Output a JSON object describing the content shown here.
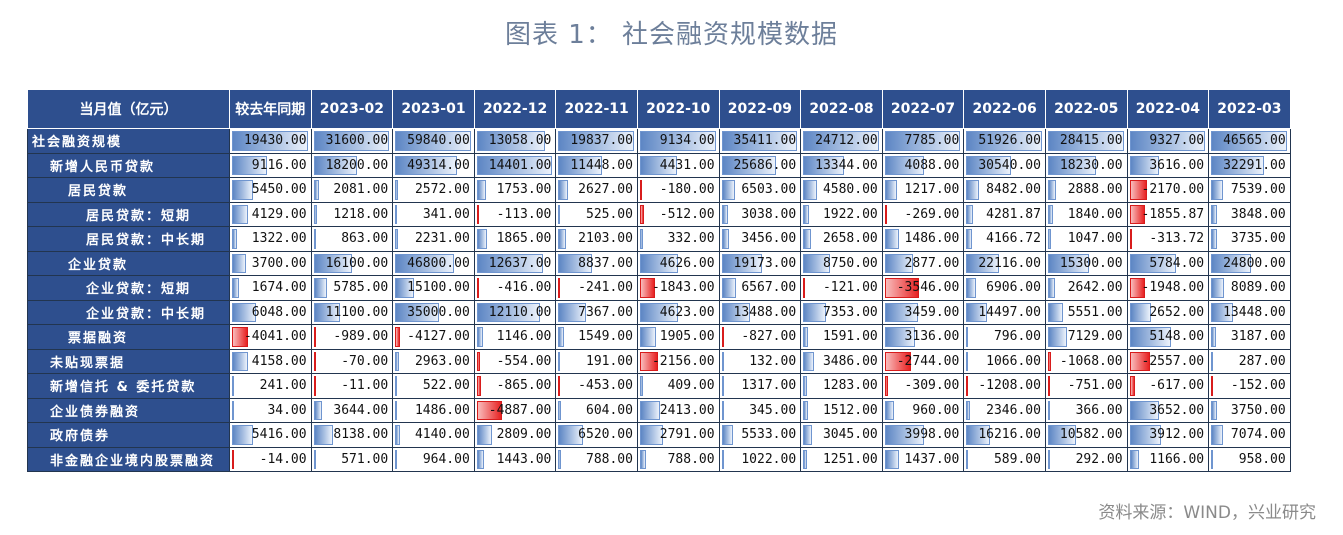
{
  "title": "图表 1：  社会融资规模数据",
  "source": "资料来源：WIND，兴业研究",
  "chart_data": {
    "type": "table",
    "header_label": "当月值（亿元）",
    "columns": [
      "较去年同期",
      "2023-02",
      "2023-01",
      "2022-12",
      "2022-11",
      "2022-10",
      "2022-09",
      "2022-08",
      "2022-07",
      "2022-06",
      "2022-05",
      "2022-04",
      "2022-03"
    ],
    "rows": [
      {
        "label": "社会融资规模",
        "indent": 0,
        "values": [
          "19430.00",
          "31600.00",
          "59840.00",
          "13058.00",
          "19837.00",
          "9134.00",
          "35411.00",
          "24712.00",
          "7785.00",
          "51926.00",
          "28415.00",
          "9327.00",
          "46565.00"
        ]
      },
      {
        "label": "新增人民币贷款",
        "indent": 1,
        "values": [
          "9116.00",
          "18200.00",
          "49314.00",
          "14401.00",
          "11448.00",
          "4431.00",
          "25686.00",
          "13344.00",
          "4088.00",
          "30540.00",
          "18230.00",
          "3616.00",
          "32291.00"
        ]
      },
      {
        "label": "居民贷款",
        "indent": 2,
        "values": [
          "5450.00",
          "2081.00",
          "2572.00",
          "1753.00",
          "2627.00",
          "-180.00",
          "6503.00",
          "4580.00",
          "1217.00",
          "8482.00",
          "2888.00",
          "-2170.00",
          "7539.00"
        ]
      },
      {
        "label": "居民贷款：短期",
        "indent": 3,
        "values": [
          "4129.00",
          "1218.00",
          "341.00",
          "-113.00",
          "525.00",
          "-512.00",
          "3038.00",
          "1922.00",
          "-269.00",
          "4281.87",
          "1840.00",
          "-1855.87",
          "3848.00"
        ]
      },
      {
        "label": "居民贷款：中长期",
        "indent": 3,
        "values": [
          "1322.00",
          "863.00",
          "2231.00",
          "1865.00",
          "2103.00",
          "332.00",
          "3456.00",
          "2658.00",
          "1486.00",
          "4166.72",
          "1047.00",
          "-313.72",
          "3735.00"
        ]
      },
      {
        "label": "企业贷款",
        "indent": 2,
        "values": [
          "3700.00",
          "16100.00",
          "46800.00",
          "12637.00",
          "8837.00",
          "4626.00",
          "19173.00",
          "8750.00",
          "2877.00",
          "22116.00",
          "15300.00",
          "5784.00",
          "24800.00"
        ]
      },
      {
        "label": "企业贷款：短期",
        "indent": 3,
        "values": [
          "1674.00",
          "5785.00",
          "15100.00",
          "-416.00",
          "-241.00",
          "-1843.00",
          "6567.00",
          "-121.00",
          "-3546.00",
          "6906.00",
          "2642.00",
          "-1948.00",
          "8089.00"
        ]
      },
      {
        "label": "企业贷款：中长期",
        "indent": 3,
        "values": [
          "6048.00",
          "11100.00",
          "35000.00",
          "12110.00",
          "7367.00",
          "4623.00",
          "13488.00",
          "7353.00",
          "3459.00",
          "14497.00",
          "5551.00",
          "2652.00",
          "13448.00"
        ]
      },
      {
        "label": "票据融资",
        "indent": 2,
        "values": [
          "-4041.00",
          "-989.00",
          "-4127.00",
          "1146.00",
          "1549.00",
          "1905.00",
          "-827.00",
          "1591.00",
          "3136.00",
          "796.00",
          "7129.00",
          "5148.00",
          "3187.00"
        ]
      },
      {
        "label": "未贴现票据",
        "indent": 1,
        "values": [
          "4158.00",
          "-70.00",
          "2963.00",
          "-554.00",
          "191.00",
          "-2156.00",
          "132.00",
          "3486.00",
          "-2744.00",
          "1066.00",
          "-1068.00",
          "-2557.00",
          "287.00"
        ]
      },
      {
        "label": "新增信托 & 委托贷款",
        "indent": 1,
        "values": [
          "241.00",
          "-11.00",
          "522.00",
          "-865.00",
          "-453.00",
          "409.00",
          "1317.00",
          "1283.00",
          "-309.00",
          "-1208.00",
          "-751.00",
          "-617.00",
          "-152.00"
        ]
      },
      {
        "label": "企业债券融资",
        "indent": 1,
        "values": [
          "34.00",
          "3644.00",
          "1486.00",
          "-4887.00",
          "604.00",
          "2413.00",
          "345.00",
          "1512.00",
          "960.00",
          "2346.00",
          "366.00",
          "3652.00",
          "3750.00"
        ]
      },
      {
        "label": "政府债券",
        "indent": 1,
        "values": [
          "5416.00",
          "8138.00",
          "4140.00",
          "2809.00",
          "6520.00",
          "2791.00",
          "5533.00",
          "3045.00",
          "3998.00",
          "16216.00",
          "10582.00",
          "3912.00",
          "7074.00"
        ]
      },
      {
        "label": "非金融企业境内股票融资",
        "indent": 1,
        "values": [
          "-14.00",
          "571.00",
          "964.00",
          "1443.00",
          "788.00",
          "788.00",
          "1022.00",
          "1251.00",
          "1437.00",
          "589.00",
          "292.00",
          "1166.00",
          "958.00"
        ]
      }
    ],
    "colors": {
      "header_bg": "#2e4f8e",
      "positive_bar": "#5d86c4",
      "negative_bar": "#e82222",
      "title": "#6d7f9a"
    }
  }
}
